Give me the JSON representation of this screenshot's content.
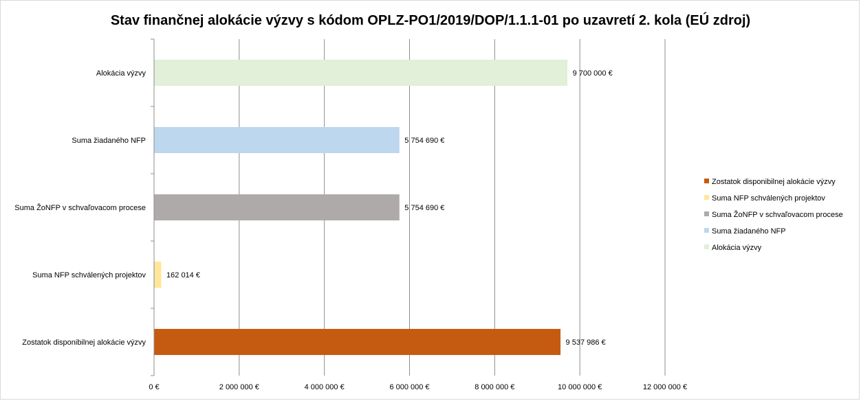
{
  "chart_data": {
    "type": "bar",
    "orientation": "horizontal",
    "title": "Stav finančnej alokácie výzvy s kódom OPLZ-PO1/2019/DOP/1.1.1-01 po uzavretí 2. kola (EÚ zdroj)",
    "categories": [
      "Alokácia výzvy",
      "Suma žiadaného NFP",
      "Suma ŽoNFP v schvaľovacom procese",
      "Suma NFP schválených projektov",
      "Zostatok disponibilnej alokácie výzvy"
    ],
    "values": [
      9700000,
      5754690,
      5754690,
      162014,
      9537986
    ],
    "value_labels": [
      "9 700 000 €",
      "5 754 690 €",
      "5 754 690 €",
      "162 014 €",
      "9 537 986 €"
    ],
    "colors": [
      "#e2efd9",
      "#bdd7ee",
      "#aeaaaa",
      "#ffe699",
      "#c55a11"
    ],
    "xlim": [
      0,
      12000000
    ],
    "x_ticks": [
      0,
      2000000,
      4000000,
      6000000,
      8000000,
      10000000,
      12000000
    ],
    "x_tick_labels": [
      "0 €",
      "2 000 000 €",
      "4 000 000 €",
      "6 000 000 €",
      "8 000 000 €",
      "10 000 000 €",
      "12 000 000 €"
    ],
    "grid": true,
    "legend_position": "right",
    "legend": [
      {
        "label": "Zostatok disponibilnej alokácie výzvy",
        "color": "#c55a11"
      },
      {
        "label": "Suma NFP schválených projektov",
        "color": "#ffe699"
      },
      {
        "label": "Suma ŽoNFP v schvaľovacom procese",
        "color": "#aeaaaa"
      },
      {
        "label": "Suma žiadaného NFP",
        "color": "#bdd7ee"
      },
      {
        "label": "Alokácia výzvy",
        "color": "#e2efd9"
      }
    ]
  }
}
